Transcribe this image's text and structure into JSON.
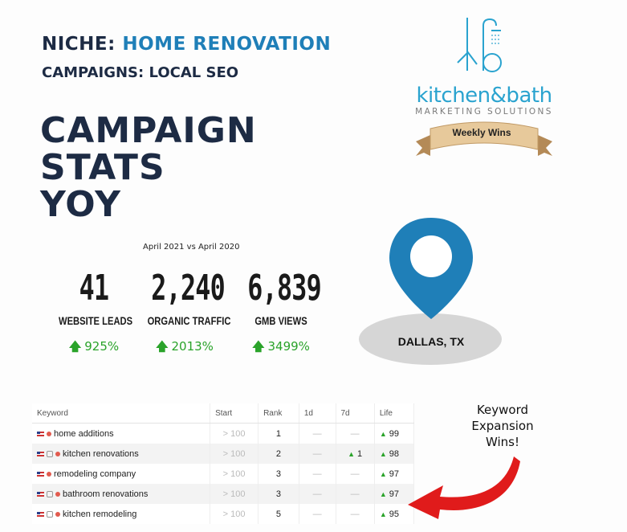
{
  "header": {
    "niche_prefix": "NICHE:",
    "niche_value": "HOME RENOVATION",
    "campaigns": "CAMPAIGNS: LOCAL SEO"
  },
  "title_lines": [
    "CAMPAIGN",
    "STATS",
    "YOY"
  ],
  "comparison": "April 2021 vs April 2020",
  "stats": [
    {
      "number": "41",
      "label": "WEBSITE LEADS",
      "change": "925%"
    },
    {
      "number": "2,240",
      "label": "ORGANIC TRAFFIC",
      "change": "2013%"
    },
    {
      "number": "6,839",
      "label": "GMB VIEWS",
      "change": "3499%"
    }
  ],
  "logo": {
    "name": "kitchen&bath",
    "subtitle": "MARKETING SOLUTIONS",
    "ribbon": "Weekly Wins"
  },
  "location": "DALLAS, TX",
  "table": {
    "headers": [
      "Keyword",
      "Start",
      "Rank",
      "1d",
      "7d",
      "Life"
    ],
    "rows": [
      {
        "keyword": "home additions",
        "start": "> 100",
        "rank": "1",
        "d1": "—",
        "d7": "—",
        "d7_up": false,
        "life": "99"
      },
      {
        "keyword": "kitchen renovations",
        "start": "> 100",
        "rank": "2",
        "d1": "—",
        "d7": "1",
        "d7_up": true,
        "life": "98"
      },
      {
        "keyword": "remodeling company",
        "start": "> 100",
        "rank": "3",
        "d1": "—",
        "d7": "—",
        "d7_up": false,
        "life": "97"
      },
      {
        "keyword": "bathroom renovations",
        "start": "> 100",
        "rank": "3",
        "d1": "—",
        "d7": "—",
        "d7_up": false,
        "life": "97"
      },
      {
        "keyword": "kitchen remodeling",
        "start": "> 100",
        "rank": "5",
        "d1": "—",
        "d7": "—",
        "d7_up": false,
        "life": "95"
      }
    ]
  },
  "callout": "Keyword Expansion Wins!",
  "colors": {
    "navy": "#1d2b44",
    "blue": "#1f7fb8",
    "pin": "#1f7fb8",
    "green": "#2aa32a",
    "arrow": "#e01b1b"
  }
}
